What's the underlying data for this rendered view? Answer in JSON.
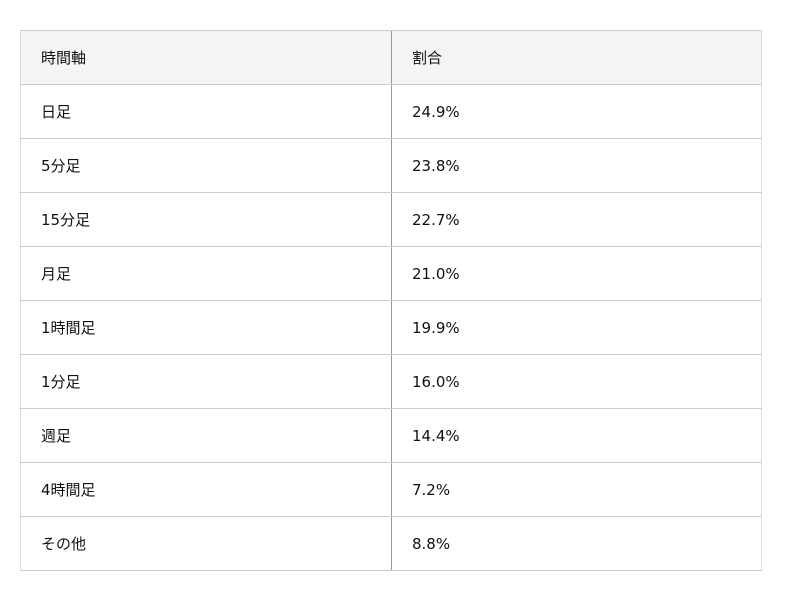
{
  "table": {
    "headers": [
      "時間軸",
      "割合"
    ],
    "rows": [
      [
        "日足",
        "24.9%"
      ],
      [
        "5分足",
        "23.8%"
      ],
      [
        "15分足",
        "22.7%"
      ],
      [
        "月足",
        "21.0%"
      ],
      [
        "1時間足",
        "19.9%"
      ],
      [
        "1分足",
        "16.0%"
      ],
      [
        "週足",
        "14.4%"
      ],
      [
        "4時間足",
        "7.2%"
      ],
      [
        "その他",
        "8.8%"
      ]
    ]
  },
  "colors": {
    "header_bg": "#f4f4f4",
    "border": "#cccccc"
  }
}
